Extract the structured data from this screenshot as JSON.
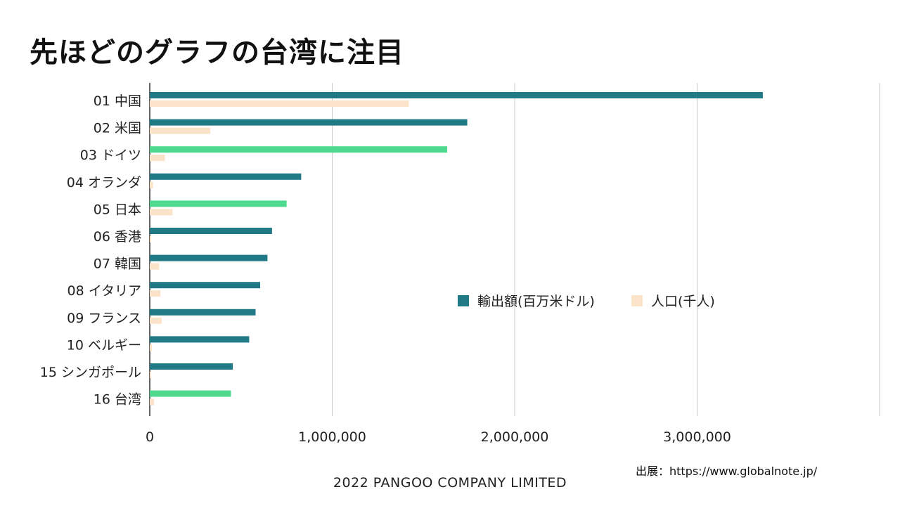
{
  "title": "先ほどのグラフの台湾に注目",
  "source_note": "出展：https://www.globalnote.jp/",
  "footer": "2022 PANGOO COMPANY LIMITED",
  "colors": {
    "export": "#1f7a86",
    "export_highlight": "#4fd98e",
    "population": "#fbe3c9",
    "grid": "#cccccc",
    "axis": "#333333"
  },
  "chart_data": {
    "type": "bar",
    "orientation": "horizontal",
    "categories": [
      "01 中国",
      "02 米国",
      "03 ドイツ",
      "04 オランダ",
      "05 日本",
      "06 香港",
      "07 韓国",
      "08 イタリア",
      "09 フランス",
      "10 ベルギー",
      "15 シンガポール",
      "16 台湾"
    ],
    "highlighted_categories": [
      "03 ドイツ",
      "05 日本",
      "16 台湾"
    ],
    "series": [
      {
        "name": "輸出額(百万米ドル)",
        "values": [
          3360000,
          1740000,
          1630000,
          830000,
          750000,
          670000,
          645000,
          605000,
          580000,
          545000,
          455000,
          445000
        ]
      },
      {
        "name": "人口(千人)",
        "values": [
          1420000,
          332000,
          83000,
          17500,
          125000,
          7500,
          51800,
          59000,
          65000,
          11600,
          5900,
          23800
        ]
      }
    ],
    "xlim": [
      0,
      4000000
    ],
    "xticks": [
      0,
      1000000,
      2000000,
      3000000,
      4000000
    ],
    "xtick_labels": [
      "0",
      "1,000,000",
      "2,000,000",
      "3,000,000",
      ""
    ],
    "grid": true,
    "legend_position": "center-right"
  }
}
